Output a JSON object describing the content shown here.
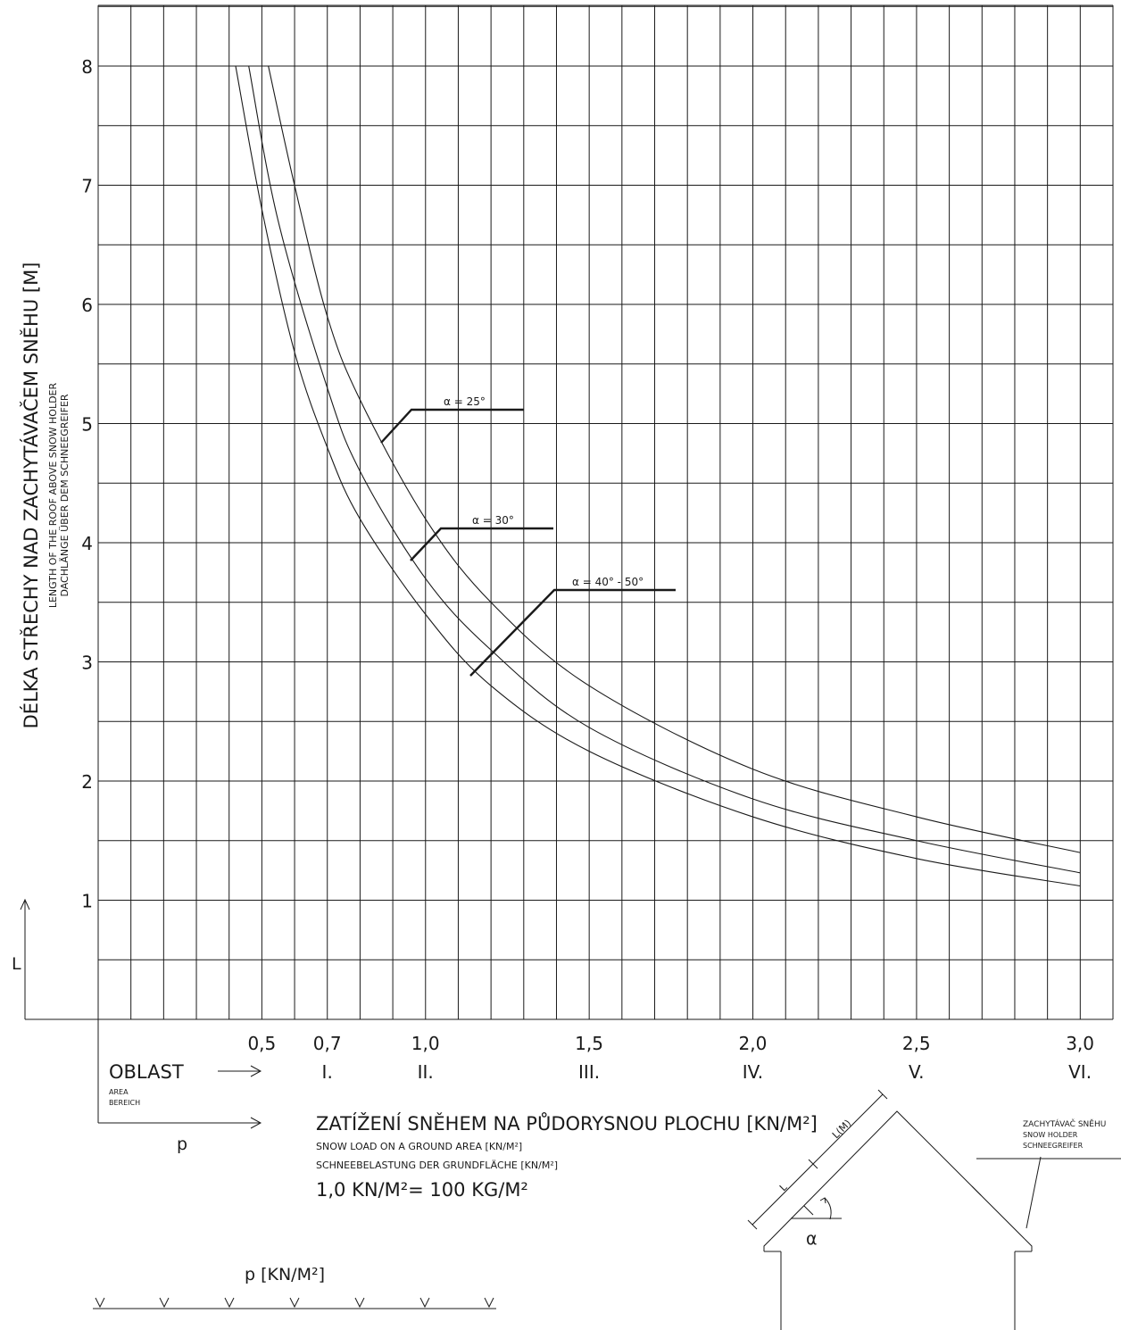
{
  "colors": {
    "ink": "#1a1a1a",
    "background": "#ffffff"
  },
  "chart_data": {
    "type": "line",
    "xlim": [
      0,
      3.0
    ],
    "ylim": [
      0,
      8.5
    ],
    "grid": true,
    "ylabel": {
      "main": "DÉLKA STŘECHY NAD ZACHYTÁVAČEM SNĚHU [M]",
      "en": "LENGTH OF THE ROOF ABOVE SNOW HOLDER",
      "de": "DACHLÄNGE ÜBER DEM SCHNEEGREIFER",
      "symbol": "L"
    },
    "xlabel": {
      "main": "ZATÍŽENÍ SNĚHEM NA PŮDORYSNOU PLOCHU [KN/M²]",
      "en": "SNOW LOAD ON A GROUND AREA [KN/M²]",
      "de": "SCHNEEBELASTUNG  DER GRUNDFLÄCHE [KN/M²]",
      "conversion": "1,0 KN/M²= 100 KG/M²",
      "symbol": "p"
    },
    "y_ticks": [
      "1",
      "2",
      "3",
      "4",
      "5",
      "6",
      "7",
      "8"
    ],
    "x_ticks": [
      {
        "value": 0.5,
        "label": "0,5",
        "area": ""
      },
      {
        "value": 0.7,
        "label": "0,7",
        "area": "I."
      },
      {
        "value": 1.0,
        "label": "1,0",
        "area": "II."
      },
      {
        "value": 1.5,
        "label": "1,5",
        "area": "III."
      },
      {
        "value": 2.0,
        "label": "2,0",
        "area": "IV."
      },
      {
        "value": 2.5,
        "label": "2,5",
        "area": "V."
      },
      {
        "value": 3.0,
        "label": "3,0",
        "area": "VI."
      }
    ],
    "area_label": {
      "main": "OBLAST",
      "en": "AREA",
      "de": "BEREICH"
    },
    "series": [
      {
        "name": "α = 25°",
        "points": [
          [
            0.52,
            8.0
          ],
          [
            0.6,
            7.0
          ],
          [
            0.7,
            5.9
          ],
          [
            0.8,
            5.2
          ],
          [
            1.0,
            4.2
          ],
          [
            1.2,
            3.5
          ],
          [
            1.5,
            2.8
          ],
          [
            2.0,
            2.1
          ],
          [
            2.5,
            1.7
          ],
          [
            3.0,
            1.4
          ]
        ]
      },
      {
        "name": "α = 30°",
        "points": [
          [
            0.46,
            8.0
          ],
          [
            0.55,
            6.7
          ],
          [
            0.7,
            5.3
          ],
          [
            0.8,
            4.6
          ],
          [
            1.0,
            3.7
          ],
          [
            1.2,
            3.1
          ],
          [
            1.5,
            2.45
          ],
          [
            2.0,
            1.85
          ],
          [
            2.5,
            1.5
          ],
          [
            3.0,
            1.23
          ]
        ]
      },
      {
        "name": "α = 40° - 50°",
        "points": [
          [
            0.42,
            8.0
          ],
          [
            0.5,
            6.8
          ],
          [
            0.6,
            5.6
          ],
          [
            0.7,
            4.8
          ],
          [
            0.8,
            4.2
          ],
          [
            1.0,
            3.4
          ],
          [
            1.2,
            2.8
          ],
          [
            1.5,
            2.25
          ],
          [
            2.0,
            1.7
          ],
          [
            2.5,
            1.35
          ],
          [
            3.0,
            1.12
          ]
        ]
      }
    ]
  },
  "load_diagram": {
    "label": "p [KN/M²]"
  },
  "roof_diagram": {
    "alpha": "α",
    "length_label": "L",
    "length_label_m": "L(M)",
    "holder": [
      "ZACHYTÁVAČ SNĚHU",
      "SNOW HOLDER",
      "SCHNEEGREIFER"
    ]
  }
}
